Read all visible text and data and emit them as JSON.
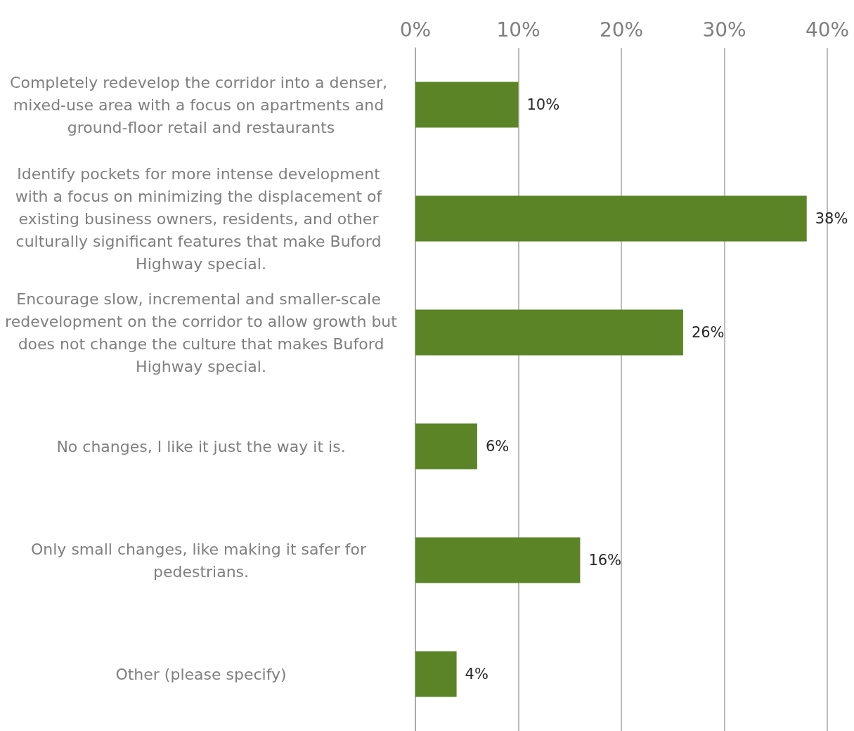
{
  "chart_data": {
    "type": "bar",
    "orientation": "horizontal",
    "categories": [
      "Completely redevelop the corridor into a denser, mixed-use area with a focus on apartments and ground-floor retail and restaurants",
      "Identify pockets for more intense development with a focus on minimizing the displacement of existing business owners, residents, and other culturally significant features that make Buford Highway special.",
      "Encourage slow, incremental and smaller-scale redevelopment on the corridor to allow growth but does not change the culture that makes Buford Highway special.",
      "No changes, I like it just the way it is.",
      "Only small changes, like making it safer for pedestrians.",
      "Other (please specify)"
    ],
    "values": [
      10,
      38,
      26,
      6,
      16,
      4
    ],
    "value_labels": [
      "10%",
      "38%",
      "26%",
      "6%",
      "16%",
      "4%"
    ],
    "color": "#5b8427",
    "xlim": [
      0,
      40
    ],
    "xticks": [
      {
        "value": 0,
        "label": "0%"
      },
      {
        "value": 10,
        "label": "10%"
      },
      {
        "value": 20,
        "label": "20%"
      },
      {
        "value": 30,
        "label": "30%"
      },
      {
        "value": 40,
        "label": "40%"
      }
    ],
    "grid": "x"
  }
}
